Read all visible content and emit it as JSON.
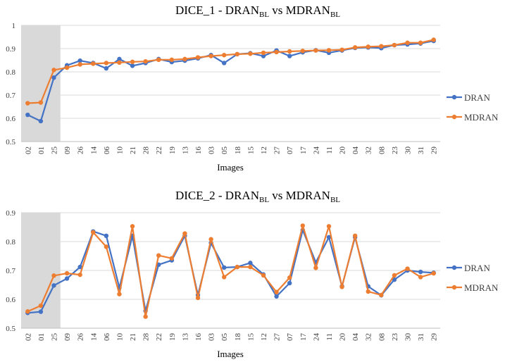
{
  "chart_data": [
    {
      "type": "line",
      "title_main": "DICE_1 - DRAN",
      "title_sub1": "BL",
      "title_vs": " vs MDRAN",
      "title_sub2": "BL",
      "xlabel": "Images",
      "ylabel": "",
      "ylim": [
        0.5,
        1.0
      ],
      "yticks": [
        "0.5",
        "0.6",
        "0.7",
        "0.8",
        "0.9",
        "1"
      ],
      "highlight": {
        "from": "02",
        "to": "25",
        "color": "#d9d9d9"
      },
      "legend_position": "right",
      "grid": true,
      "categories": [
        "02",
        "01",
        "25",
        "09",
        "26",
        "14",
        "06",
        "10",
        "21",
        "28",
        "22",
        "19",
        "13",
        "16",
        "03",
        "05",
        "18",
        "15",
        "12",
        "27",
        "07",
        "17",
        "24",
        "11",
        "20",
        "04",
        "32",
        "08",
        "23",
        "30",
        "31",
        "29"
      ],
      "series": [
        {
          "name": "DRAN",
          "color": "#4472c4",
          "values": [
            0.615,
            0.588,
            0.775,
            0.828,
            0.848,
            0.838,
            0.815,
            0.855,
            0.826,
            0.838,
            0.855,
            0.842,
            0.848,
            0.858,
            0.872,
            0.838,
            0.876,
            0.88,
            0.868,
            0.892,
            0.868,
            0.884,
            0.893,
            0.882,
            0.892,
            0.903,
            0.905,
            0.902,
            0.915,
            0.918,
            0.922,
            0.933
          ]
        },
        {
          "name": "MDRAN",
          "color": "#ed7d31",
          "values": [
            0.665,
            0.668,
            0.808,
            0.818,
            0.832,
            0.835,
            0.838,
            0.84,
            0.843,
            0.845,
            0.852,
            0.852,
            0.855,
            0.862,
            0.868,
            0.872,
            0.876,
            0.878,
            0.882,
            0.885,
            0.888,
            0.89,
            0.892,
            0.893,
            0.895,
            0.905,
            0.908,
            0.91,
            0.915,
            0.925,
            0.925,
            0.938
          ]
        }
      ]
    },
    {
      "type": "line",
      "title_main": "DICE_2 - DRAN",
      "title_sub1": "BL",
      "title_vs": " vs MDRAN",
      "title_sub2": "BL",
      "xlabel": "Images",
      "ylabel": "",
      "ylim": [
        0.5,
        0.9
      ],
      "yticks": [
        "0.5",
        "0.6",
        "0.7",
        "0.8",
        "0.9"
      ],
      "highlight": {
        "from": "02",
        "to": "25",
        "color": "#d9d9d9"
      },
      "legend_position": "right",
      "grid": true,
      "categories": [
        "02",
        "01",
        "25",
        "09",
        "26",
        "14",
        "06",
        "10",
        "21",
        "28",
        "22",
        "19",
        "13",
        "16",
        "03",
        "05",
        "18",
        "15",
        "12",
        "27",
        "07",
        "17",
        "24",
        "11",
        "20",
        "04",
        "32",
        "08",
        "23",
        "30",
        "31",
        "29"
      ],
      "series": [
        {
          "name": "DRAN",
          "color": "#4472c4",
          "values": [
            0.553,
            0.557,
            0.648,
            0.672,
            0.712,
            0.835,
            0.82,
            0.64,
            0.82,
            0.56,
            0.72,
            0.735,
            0.82,
            0.615,
            0.795,
            0.71,
            0.712,
            0.726,
            0.686,
            0.61,
            0.656,
            0.84,
            0.728,
            0.815,
            0.645,
            0.815,
            0.645,
            0.614,
            0.668,
            0.7,
            0.695,
            0.692
          ]
        },
        {
          "name": "MDRAN",
          "color": "#ed7d31",
          "values": [
            0.558,
            0.578,
            0.682,
            0.69,
            0.685,
            0.832,
            0.782,
            0.618,
            0.853,
            0.54,
            0.752,
            0.742,
            0.828,
            0.605,
            0.808,
            0.677,
            0.712,
            0.712,
            0.683,
            0.625,
            0.675,
            0.855,
            0.709,
            0.853,
            0.643,
            0.82,
            0.627,
            0.615,
            0.683,
            0.706,
            0.677,
            0.69
          ]
        }
      ]
    }
  ]
}
